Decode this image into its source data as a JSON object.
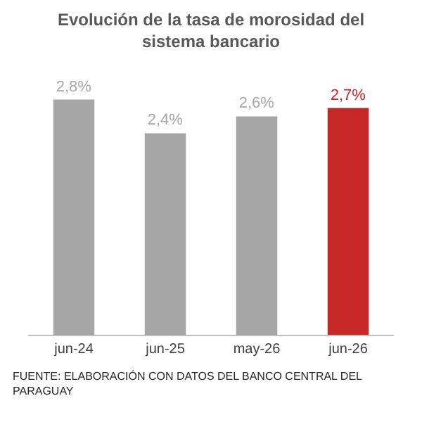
{
  "chart_data": {
    "type": "bar",
    "title": "Evolución de la tasa de morosidad del sistema bancario",
    "categories": [
      "jun-24",
      "jun-25",
      "may-26",
      "jun-26"
    ],
    "values": [
      2.8,
      2.4,
      2.6,
      2.7
    ],
    "colors": [
      "#a6a6a6",
      "#a6a6a6",
      "#a6a6a6",
      "#c62828"
    ],
    "value_labels": [
      "2,8%",
      "2,4%",
      "2,6%",
      "2,7%"
    ],
    "annotations": [
      "FUENTE: ELABORACIÓN CON DATOS DEL BANCO CENTRAL DEL PARAGUAY"
    ]
  }
}
